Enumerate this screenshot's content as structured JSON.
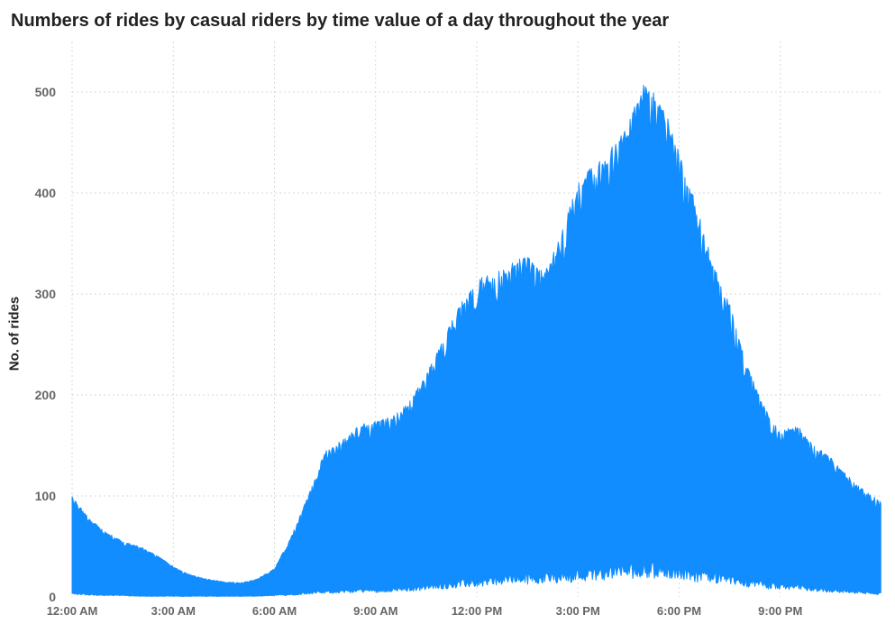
{
  "chart_data": {
    "type": "area",
    "title": "Numbers of rides by casual riders by time value of a day throughout the year",
    "xlabel": "",
    "ylabel": "No. of rides",
    "ylim": [
      0,
      550
    ],
    "yticks": [
      0,
      100,
      200,
      300,
      400,
      500
    ],
    "xticks": [
      "12:00 AM",
      "3:00 AM",
      "6:00 AM",
      "9:00 AM",
      "12:00 PM",
      "3:00 PM",
      "6:00 PM",
      "9:00 PM"
    ],
    "x_domain_hours": [
      0,
      24
    ],
    "grid": true,
    "legend": "none",
    "series": [
      {
        "color": "#118DFF",
        "x_hours": [
          0.0,
          0.5,
          1.0,
          1.5,
          2.0,
          2.5,
          3.0,
          3.5,
          4.0,
          4.5,
          5.0,
          5.5,
          6.0,
          6.5,
          7.0,
          7.5,
          8.0,
          8.5,
          9.0,
          9.5,
          10.0,
          10.5,
          11.0,
          11.5,
          12.0,
          12.5,
          13.0,
          13.5,
          14.0,
          14.5,
          15.0,
          15.5,
          16.0,
          16.5,
          17.0,
          17.5,
          18.0,
          18.5,
          19.0,
          19.5,
          20.0,
          20.5,
          21.0,
          21.5,
          22.0,
          22.5,
          23.0,
          23.5,
          23.98
        ],
        "max_rides": [
          100,
          78,
          65,
          55,
          50,
          42,
          30,
          22,
          18,
          15,
          14,
          18,
          28,
          60,
          100,
          145,
          155,
          170,
          175,
          180,
          195,
          220,
          255,
          290,
          315,
          320,
          330,
          340,
          320,
          360,
          410,
          430,
          445,
          470,
          515,
          490,
          440,
          390,
          330,
          290,
          230,
          190,
          165,
          170,
          150,
          140,
          120,
          105,
          95
        ],
        "min_rides": [
          4,
          3,
          2,
          2,
          1,
          1,
          1,
          1,
          1,
          1,
          1,
          1,
          2,
          3,
          5,
          6,
          7,
          8,
          8,
          9,
          10,
          12,
          14,
          16,
          18,
          20,
          22,
          23,
          24,
          25,
          27,
          29,
          31,
          32,
          34,
          32,
          30,
          27,
          24,
          21,
          18,
          15,
          13,
          12,
          10,
          8,
          7,
          5,
          4
        ]
      }
    ]
  }
}
